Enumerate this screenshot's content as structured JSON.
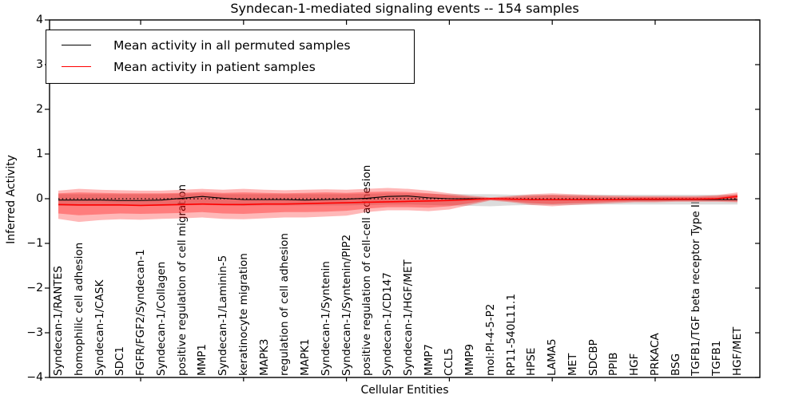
{
  "title": "Syndecan-1-mediated signaling events -- 154 samples",
  "axes": {
    "x_label": "Cellular Entities",
    "y_label": "Inferred Activity",
    "y_tick_labels": [
      "4",
      "3",
      "2",
      "1",
      "0",
      "−1",
      "−2",
      "−3",
      "−4"
    ]
  },
  "colors": {
    "permuted_line": "#000000",
    "patient_line": "#ff0000",
    "patient_band": "#ff0000",
    "permuted_band": "#c0c0c0",
    "frame": "#000000"
  },
  "chart_data": {
    "type": "line",
    "title": "Syndecan-1-mediated signaling events -- 154 samples",
    "xlabel": "Cellular Entities",
    "ylabel": "Inferred Activity",
    "ylim": [
      -4,
      4
    ],
    "yticks": [
      4,
      3,
      2,
      1,
      0,
      -1,
      -2,
      -3,
      -4
    ],
    "xtick_indices": [
      4,
      9,
      14,
      19,
      24,
      29
    ],
    "grid": false,
    "legend_position": "upper left",
    "categories": [
      "Syndecan-1/RANTES",
      "homophilic cell adhesion",
      "Syndecan-1/CASK",
      "SDC1",
      "FGFR/FGF2/Syndecan-1",
      "Syndecan-1/Collagen",
      "positive regulation of cell migration",
      "MMP1",
      "Syndecan-1/Laminin-5",
      "keratinocyte migration",
      "MAPK3",
      "regulation of cell adhesion",
      "MAPK1",
      "Syndecan-1/Syntenin",
      "Syndecan-1/Syntenin/PIP2",
      "positive regulation of cell-cell adhesion",
      "Syndecan-1/CD147",
      "Syndecan-1/HGF/MET",
      "MMP7",
      "CCL5",
      "MMP9",
      "mol:PI-4-5-P2",
      "RP11-540L11.1",
      "HPSE",
      "LAMA5",
      "MET",
      "SDCBP",
      "PPIB",
      "HGF",
      "PRKACA",
      "BSG",
      "TGFB1/TGF beta receptor Type II",
      "TGFB1",
      "HGF/MET"
    ],
    "series": [
      {
        "name": "Mean activity in all permuted samples",
        "color": "#000000",
        "width": 1.1,
        "values": [
          -0.03,
          -0.03,
          -0.03,
          -0.04,
          -0.04,
          -0.03,
          0.01,
          0.05,
          0.01,
          -0.02,
          -0.02,
          -0.02,
          -0.03,
          -0.02,
          -0.01,
          0.01,
          0.05,
          0.06,
          0.02,
          0.0,
          0.0,
          0.0,
          -0.01,
          -0.02,
          -0.02,
          -0.02,
          -0.02,
          -0.02,
          -0.02,
          -0.02,
          -0.02,
          -0.02,
          -0.02,
          -0.02
        ]
      },
      {
        "name": "Mean activity in patient samples",
        "color": "#ff0000",
        "width": 1.6,
        "values": [
          -0.13,
          -0.14,
          -0.14,
          -0.14,
          -0.15,
          -0.14,
          -0.13,
          -0.12,
          -0.13,
          -0.13,
          -0.12,
          -0.12,
          -0.11,
          -0.1,
          -0.09,
          -0.08,
          -0.07,
          -0.06,
          -0.05,
          -0.04,
          -0.02,
          0.0,
          -0.01,
          -0.02,
          -0.02,
          -0.02,
          -0.02,
          -0.02,
          -0.01,
          -0.01,
          -0.01,
          -0.01,
          0.0,
          0.05
        ]
      }
    ],
    "bands": [
      {
        "name": "permuted-samples-range",
        "color": "#c0c0c0",
        "opacity": 0.55,
        "upper": [
          0.1,
          0.1,
          0.1,
          0.1,
          0.1,
          0.1,
          0.11,
          0.12,
          0.1,
          0.1,
          0.1,
          0.1,
          0.1,
          0.1,
          0.1,
          0.11,
          0.12,
          0.12,
          0.11,
          0.1,
          0.1,
          0.1,
          0.09,
          0.09,
          0.09,
          0.09,
          0.09,
          0.09,
          0.09,
          0.09,
          0.09,
          0.09,
          0.09,
          0.09
        ],
        "lower": [
          -0.16,
          -0.16,
          -0.16,
          -0.16,
          -0.16,
          -0.16,
          -0.15,
          -0.14,
          -0.15,
          -0.16,
          -0.15,
          -0.15,
          -0.15,
          -0.15,
          -0.15,
          -0.14,
          -0.13,
          -0.13,
          -0.14,
          -0.15,
          -0.16,
          -0.17,
          -0.15,
          -0.14,
          -0.14,
          -0.14,
          -0.13,
          -0.13,
          -0.13,
          -0.13,
          -0.13,
          -0.13,
          -0.13,
          -0.13
        ]
      },
      {
        "name": "patient-samples-range-outer",
        "color": "#ff0000",
        "opacity": 0.28,
        "upper": [
          0.18,
          0.22,
          0.2,
          0.19,
          0.18,
          0.18,
          0.2,
          0.22,
          0.2,
          0.22,
          0.2,
          0.19,
          0.2,
          0.21,
          0.2,
          0.22,
          0.24,
          0.22,
          0.18,
          0.12,
          0.07,
          0.03,
          0.06,
          0.1,
          0.12,
          0.1,
          0.08,
          0.07,
          0.06,
          0.06,
          0.06,
          0.06,
          0.08,
          0.14
        ],
        "lower": [
          -0.45,
          -0.52,
          -0.48,
          -0.46,
          -0.47,
          -0.45,
          -0.44,
          -0.42,
          -0.45,
          -0.46,
          -0.44,
          -0.42,
          -0.42,
          -0.4,
          -0.38,
          -0.3,
          -0.26,
          -0.26,
          -0.28,
          -0.24,
          -0.14,
          -0.04,
          -0.08,
          -0.14,
          -0.17,
          -0.14,
          -0.12,
          -0.1,
          -0.08,
          -0.08,
          -0.07,
          -0.07,
          -0.07,
          -0.08
        ]
      },
      {
        "name": "patient-samples-range-inner",
        "color": "#ff0000",
        "opacity": 0.32,
        "upper": [
          0.12,
          0.14,
          0.13,
          0.12,
          0.12,
          0.12,
          0.13,
          0.15,
          0.13,
          0.14,
          0.13,
          0.12,
          0.13,
          0.14,
          0.13,
          0.15,
          0.16,
          0.15,
          0.12,
          0.08,
          0.04,
          0.02,
          0.04,
          0.06,
          0.08,
          0.06,
          0.05,
          0.04,
          0.04,
          0.04,
          0.04,
          0.04,
          0.05,
          0.1
        ],
        "lower": [
          -0.33,
          -0.37,
          -0.35,
          -0.33,
          -0.34,
          -0.33,
          -0.32,
          -0.3,
          -0.33,
          -0.34,
          -0.32,
          -0.3,
          -0.3,
          -0.29,
          -0.27,
          -0.22,
          -0.19,
          -0.19,
          -0.2,
          -0.17,
          -0.1,
          -0.03,
          -0.06,
          -0.1,
          -0.12,
          -0.1,
          -0.09,
          -0.07,
          -0.06,
          -0.06,
          -0.05,
          -0.05,
          -0.05,
          -0.06
        ]
      }
    ],
    "zero_line": {
      "y": 0,
      "style": "dotted",
      "color": "#000000"
    }
  }
}
